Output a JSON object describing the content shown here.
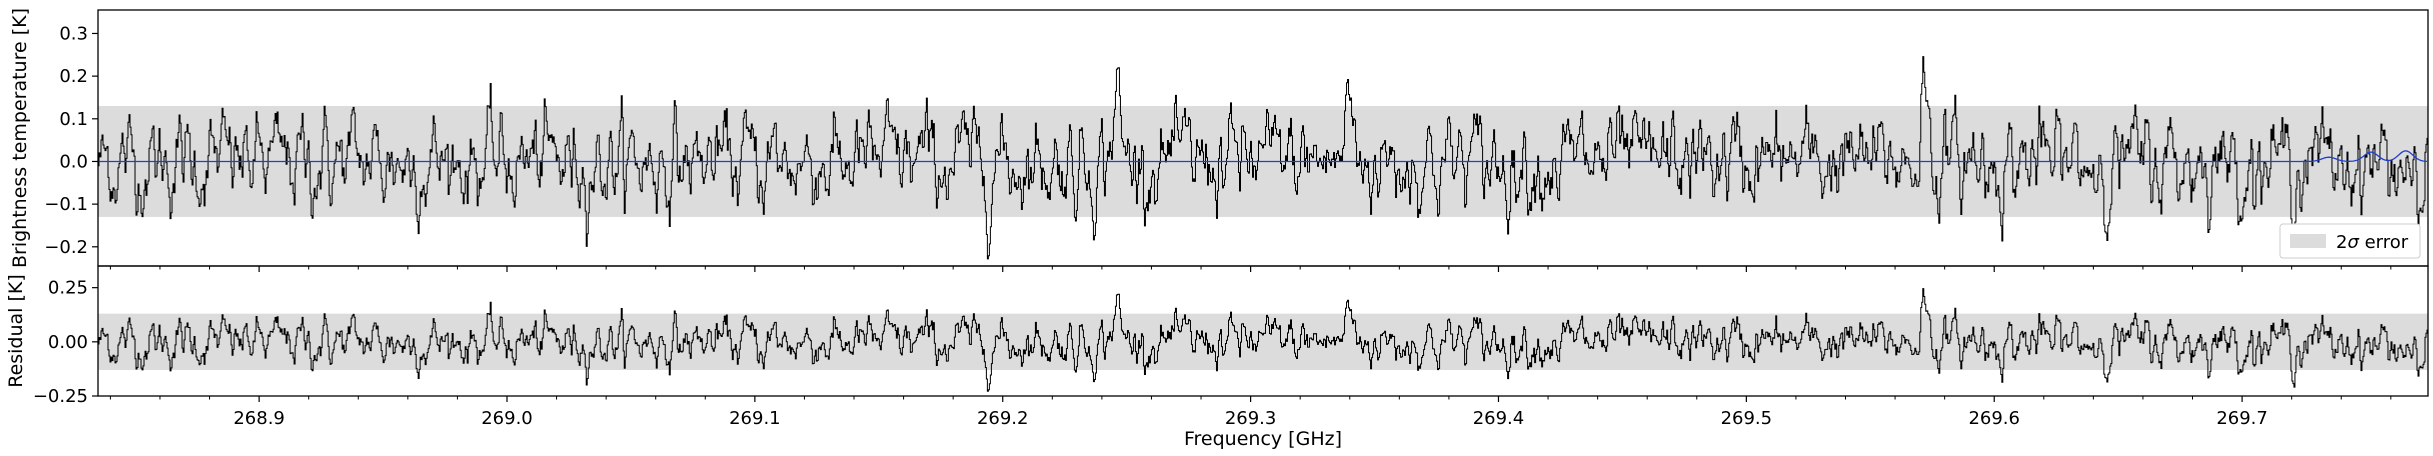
{
  "chart_data": {
    "type": "line",
    "xlabel": "Frequency [GHz]",
    "xlim": [
      268.835,
      269.775
    ],
    "xticks": [
      "268.9",
      "269.0",
      "269.1",
      "269.2",
      "269.3",
      "269.4",
      "269.5",
      "269.6",
      "269.7"
    ],
    "xtick_values": [
      268.9,
      269.0,
      269.1,
      269.2,
      269.3,
      269.4,
      269.5,
      269.6,
      269.7
    ],
    "colors": {
      "data": "#000000",
      "model": "#1f3fcf",
      "band": "#dcdcdc"
    },
    "panels": [
      {
        "id": "spectrum",
        "ylabel": "Brightness temperature [K]",
        "ylim": [
          -0.245,
          0.355
        ],
        "yticks": [
          "−0.2",
          "−0.1",
          "0.0",
          "0.1",
          "0.2",
          "0.3"
        ],
        "ytick_values": [
          -0.2,
          -0.1,
          0.0,
          0.1,
          0.2,
          0.3
        ],
        "error_band": [
          -0.13,
          0.13
        ],
        "noise_sigma": 0.06,
        "series": [
          {
            "name": "",
            "role": "observed"
          },
          {
            "name": "",
            "role": "model",
            "features": [
              {
                "x": 269.752,
                "amp": 0.022
              },
              {
                "x": 269.766,
                "amp": 0.025
              },
              {
                "x": 269.735,
                "amp": 0.01
              }
            ]
          }
        ],
        "peaks": [
          {
            "x": 269.5715,
            "amp": 0.25
          },
          {
            "x": 269.2455,
            "amp": 0.22
          },
          {
            "x": 269.3395,
            "amp": 0.2
          },
          {
            "x": 269.7715,
            "amp": -0.24
          }
        ]
      },
      {
        "id": "residual",
        "ylabel": "Residual [K]",
        "ylim": [
          -0.25,
          0.35
        ],
        "yticks": [
          "−0.25",
          "0.00",
          "0.25"
        ],
        "ytick_values": [
          -0.25,
          0.0,
          0.25
        ],
        "error_band": [
          -0.13,
          0.13
        ],
        "noise_sigma": 0.06
      }
    ],
    "legend": {
      "label_main": "2",
      "label_sigma": "σ",
      "label_rest": " error",
      "position": "lower-right"
    }
  }
}
